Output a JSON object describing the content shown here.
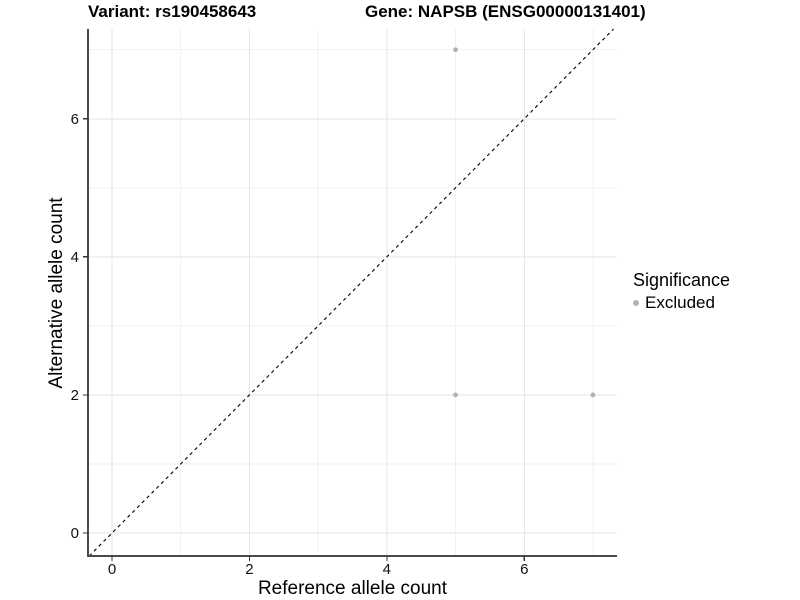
{
  "chart_data": {
    "type": "scatter",
    "title_left": "Variant: rs190458643",
    "title_right": "Gene: NAPSB (ENSG00000131401)",
    "xlabel": "Reference allele count",
    "ylabel": "Alternative allele count",
    "xlim": [
      -0.35,
      7.35
    ],
    "ylim": [
      -0.333,
      7.3
    ],
    "xticks": [
      0,
      2,
      4,
      6
    ],
    "yticks": [
      0,
      2,
      4,
      6
    ],
    "xminor": [
      1,
      3,
      5,
      7
    ],
    "yminor": [
      1,
      3,
      5,
      7
    ],
    "grid": true,
    "identity_line": {
      "show": true,
      "style": "dashed",
      "color": "#000000"
    },
    "legend": {
      "title": "Significance",
      "position": "right",
      "items": [
        {
          "label": "Excluded",
          "color": "#b2b2b2"
        }
      ]
    },
    "series": [
      {
        "name": "Excluded",
        "color": "#b2b2b2",
        "marker_radius": 2.4,
        "points": [
          [
            5,
            7
          ],
          [
            5,
            2
          ],
          [
            7,
            2
          ]
        ]
      }
    ]
  },
  "style": {
    "axis_line_color": "#4a4a4a",
    "tick_color": "#333333",
    "grid_major_color": "#e6e6e6",
    "grid_minor_color": "#f2f2f2",
    "tick_label_color": "#111111"
  }
}
